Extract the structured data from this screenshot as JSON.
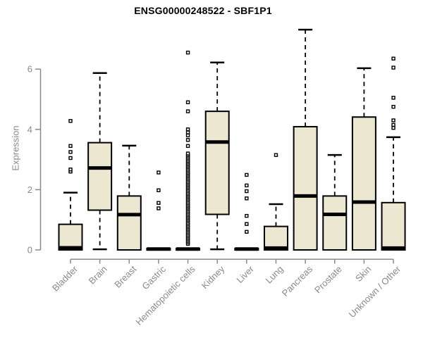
{
  "colors": {
    "background": "#ffffff",
    "box_fill": "#ece7d0",
    "box_stroke": "#000000",
    "median": "#000000",
    "whisker": "#000000",
    "outlier_stroke": "#000000",
    "outlier_fill": "#ffffff",
    "axis": "#8a8a8a",
    "tick_label": "#8a8a8a",
    "title": "#000000"
  },
  "chart_data": {
    "type": "boxplot",
    "title": "ENSG00000248522 - SBF1P1",
    "xlabel": "",
    "ylabel": "Expression",
    "ylim": [
      0,
      6
    ],
    "yticks": [
      0,
      2,
      4,
      6
    ],
    "grid": false,
    "legend": "none",
    "categories": [
      "Bladder",
      "Brain",
      "Breast",
      "Gastric",
      "Hematopoietic cells",
      "Kidney",
      "Liver",
      "Lung",
      "Pancreas",
      "Prostate",
      "Skin",
      "Unknown / Other"
    ],
    "series": [
      {
        "name": "Bladder",
        "whisker_low": 0,
        "q1": 0,
        "median": 0.07,
        "q3": 0.85,
        "whisker_high": 1.9,
        "outliers": [
          2.6,
          2.67,
          3.05,
          3.25,
          3.45,
          4.28
        ]
      },
      {
        "name": "Brain",
        "whisker_low": 0.02,
        "q1": 1.32,
        "median": 2.72,
        "q3": 3.56,
        "whisker_high": 5.87,
        "outliers": []
      },
      {
        "name": "Breast",
        "whisker_low": 0,
        "q1": 0,
        "median": 1.17,
        "q3": 1.79,
        "whisker_high": 3.46,
        "outliers": []
      },
      {
        "name": "Gastric",
        "whisker_low": 0,
        "q1": 0,
        "median": 0.03,
        "q3": 0.05,
        "whisker_high": 0.05,
        "outliers": [
          1.38,
          1.56,
          1.98,
          2.57
        ]
      },
      {
        "name": "Hematopoietic cells",
        "whisker_low": 0,
        "q1": 0,
        "median": 0.03,
        "q3": 0.05,
        "whisker_high": 0.05,
        "outliers": [
          0.2,
          0.25,
          0.3,
          0.35,
          0.4,
          0.45,
          0.5,
          0.55,
          0.6,
          0.65,
          0.7,
          0.75,
          0.8,
          0.85,
          0.9,
          0.95,
          1.0,
          1.05,
          1.1,
          1.15,
          1.2,
          1.25,
          1.3,
          1.35,
          1.4,
          1.45,
          1.5,
          1.55,
          1.6,
          1.65,
          1.7,
          1.75,
          1.8,
          1.85,
          1.9,
          1.95,
          2.0,
          2.05,
          2.1,
          2.15,
          2.2,
          2.25,
          2.3,
          2.35,
          2.4,
          2.45,
          2.5,
          2.55,
          2.6,
          2.65,
          2.7,
          2.75,
          2.8,
          2.85,
          2.9,
          2.95,
          3.0,
          3.05,
          3.1,
          3.15,
          3.2,
          3.45,
          3.65,
          3.8,
          3.9,
          4.0,
          4.6,
          4.9,
          6.55
        ]
      },
      {
        "name": "Kidney",
        "whisker_low": 0.02,
        "q1": 1.18,
        "median": 3.58,
        "q3": 4.6,
        "whisker_high": 6.22,
        "outliers": []
      },
      {
        "name": "Liver",
        "whisker_low": 0,
        "q1": 0,
        "median": 0.03,
        "q3": 0.05,
        "whisker_high": 0.05,
        "outliers": [
          0.6,
          0.86,
          1.13,
          1.71,
          1.95,
          2.14,
          2.49
        ]
      },
      {
        "name": "Lung",
        "whisker_low": 0,
        "q1": 0,
        "median": 0.06,
        "q3": 0.78,
        "whisker_high": 1.52,
        "outliers": [
          3.15
        ]
      },
      {
        "name": "Pancreas",
        "whisker_low": 0,
        "q1": 0,
        "median": 1.79,
        "q3": 4.09,
        "whisker_high": 7.31,
        "outliers": []
      },
      {
        "name": "Prostate",
        "whisker_low": 0,
        "q1": 0,
        "median": 1.18,
        "q3": 1.79,
        "whisker_high": 3.15,
        "outliers": []
      },
      {
        "name": "Skin",
        "whisker_low": 0,
        "q1": 0,
        "median": 1.59,
        "q3": 4.41,
        "whisker_high": 6.03,
        "outliers": []
      },
      {
        "name": "Unknown / Other",
        "whisker_low": 0,
        "q1": 0,
        "median": 0.06,
        "q3": 1.57,
        "whisker_high": 3.74,
        "outliers": [
          4.05,
          4.15,
          4.3,
          4.75,
          5.05,
          6.05,
          6.35
        ]
      }
    ]
  }
}
